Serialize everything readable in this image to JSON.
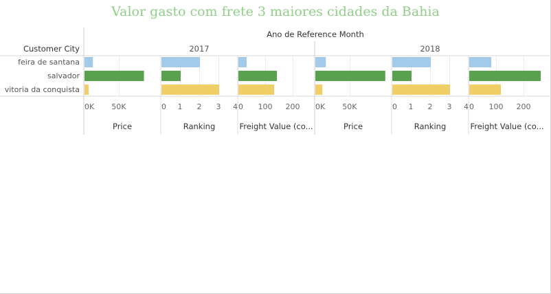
{
  "title": "Valor gasto com frete 3 maiores cidades da Bahia",
  "colors": {
    "feira de santana": "#a3cbe9",
    "salvador": "#59a14f",
    "vitoria da conquista": "#f0cf67"
  },
  "chart_data": {
    "type": "bar",
    "orientation": "horizontal",
    "row_header": "Customer City",
    "column_header": "Ano de Reference Month",
    "categories": [
      "feira de santana",
      "salvador",
      "vitoria da conquista"
    ],
    "years": [
      {
        "label": "2017",
        "measures": [
          {
            "name": "Price",
            "ticks": [
              "0K",
              "50K"
            ],
            "tick_values": [
              0,
              50000
            ],
            "xlim": [
              0,
              110000
            ],
            "values": [
              12000,
              85000,
              6000
            ]
          },
          {
            "name": "Ranking",
            "ticks": [
              "0",
              "1",
              "2",
              "3",
              "4"
            ],
            "tick_values": [
              0,
              1,
              2,
              3,
              4
            ],
            "xlim": [
              0,
              4
            ],
            "values": [
              2,
              1,
              3
            ]
          },
          {
            "name": "Freight Value (co...",
            "ticks": [
              "0",
              "100",
              "200"
            ],
            "tick_values": [
              0,
              100,
              200
            ],
            "xlim": [
              0,
              280
            ],
            "values": [
              30,
              140,
              130
            ]
          }
        ]
      },
      {
        "label": "2018",
        "measures": [
          {
            "name": "Price",
            "ticks": [
              "0K",
              "50K"
            ],
            "tick_values": [
              0,
              50000
            ],
            "xlim": [
              0,
              110000
            ],
            "values": [
              15000,
              100000,
              10000
            ]
          },
          {
            "name": "Ranking",
            "ticks": [
              "0",
              "1",
              "2",
              "3",
              "4"
            ],
            "tick_values": [
              0,
              1,
              2,
              3,
              4
            ],
            "xlim": [
              0,
              4
            ],
            "values": [
              2,
              1,
              3
            ]
          },
          {
            "name": "Freight Value (co...",
            "ticks": [
              "0",
              "100",
              "200"
            ],
            "tick_values": [
              0,
              100,
              200
            ],
            "xlim": [
              0,
              280
            ],
            "values": [
              80,
              260,
              115
            ]
          }
        ]
      }
    ]
  }
}
